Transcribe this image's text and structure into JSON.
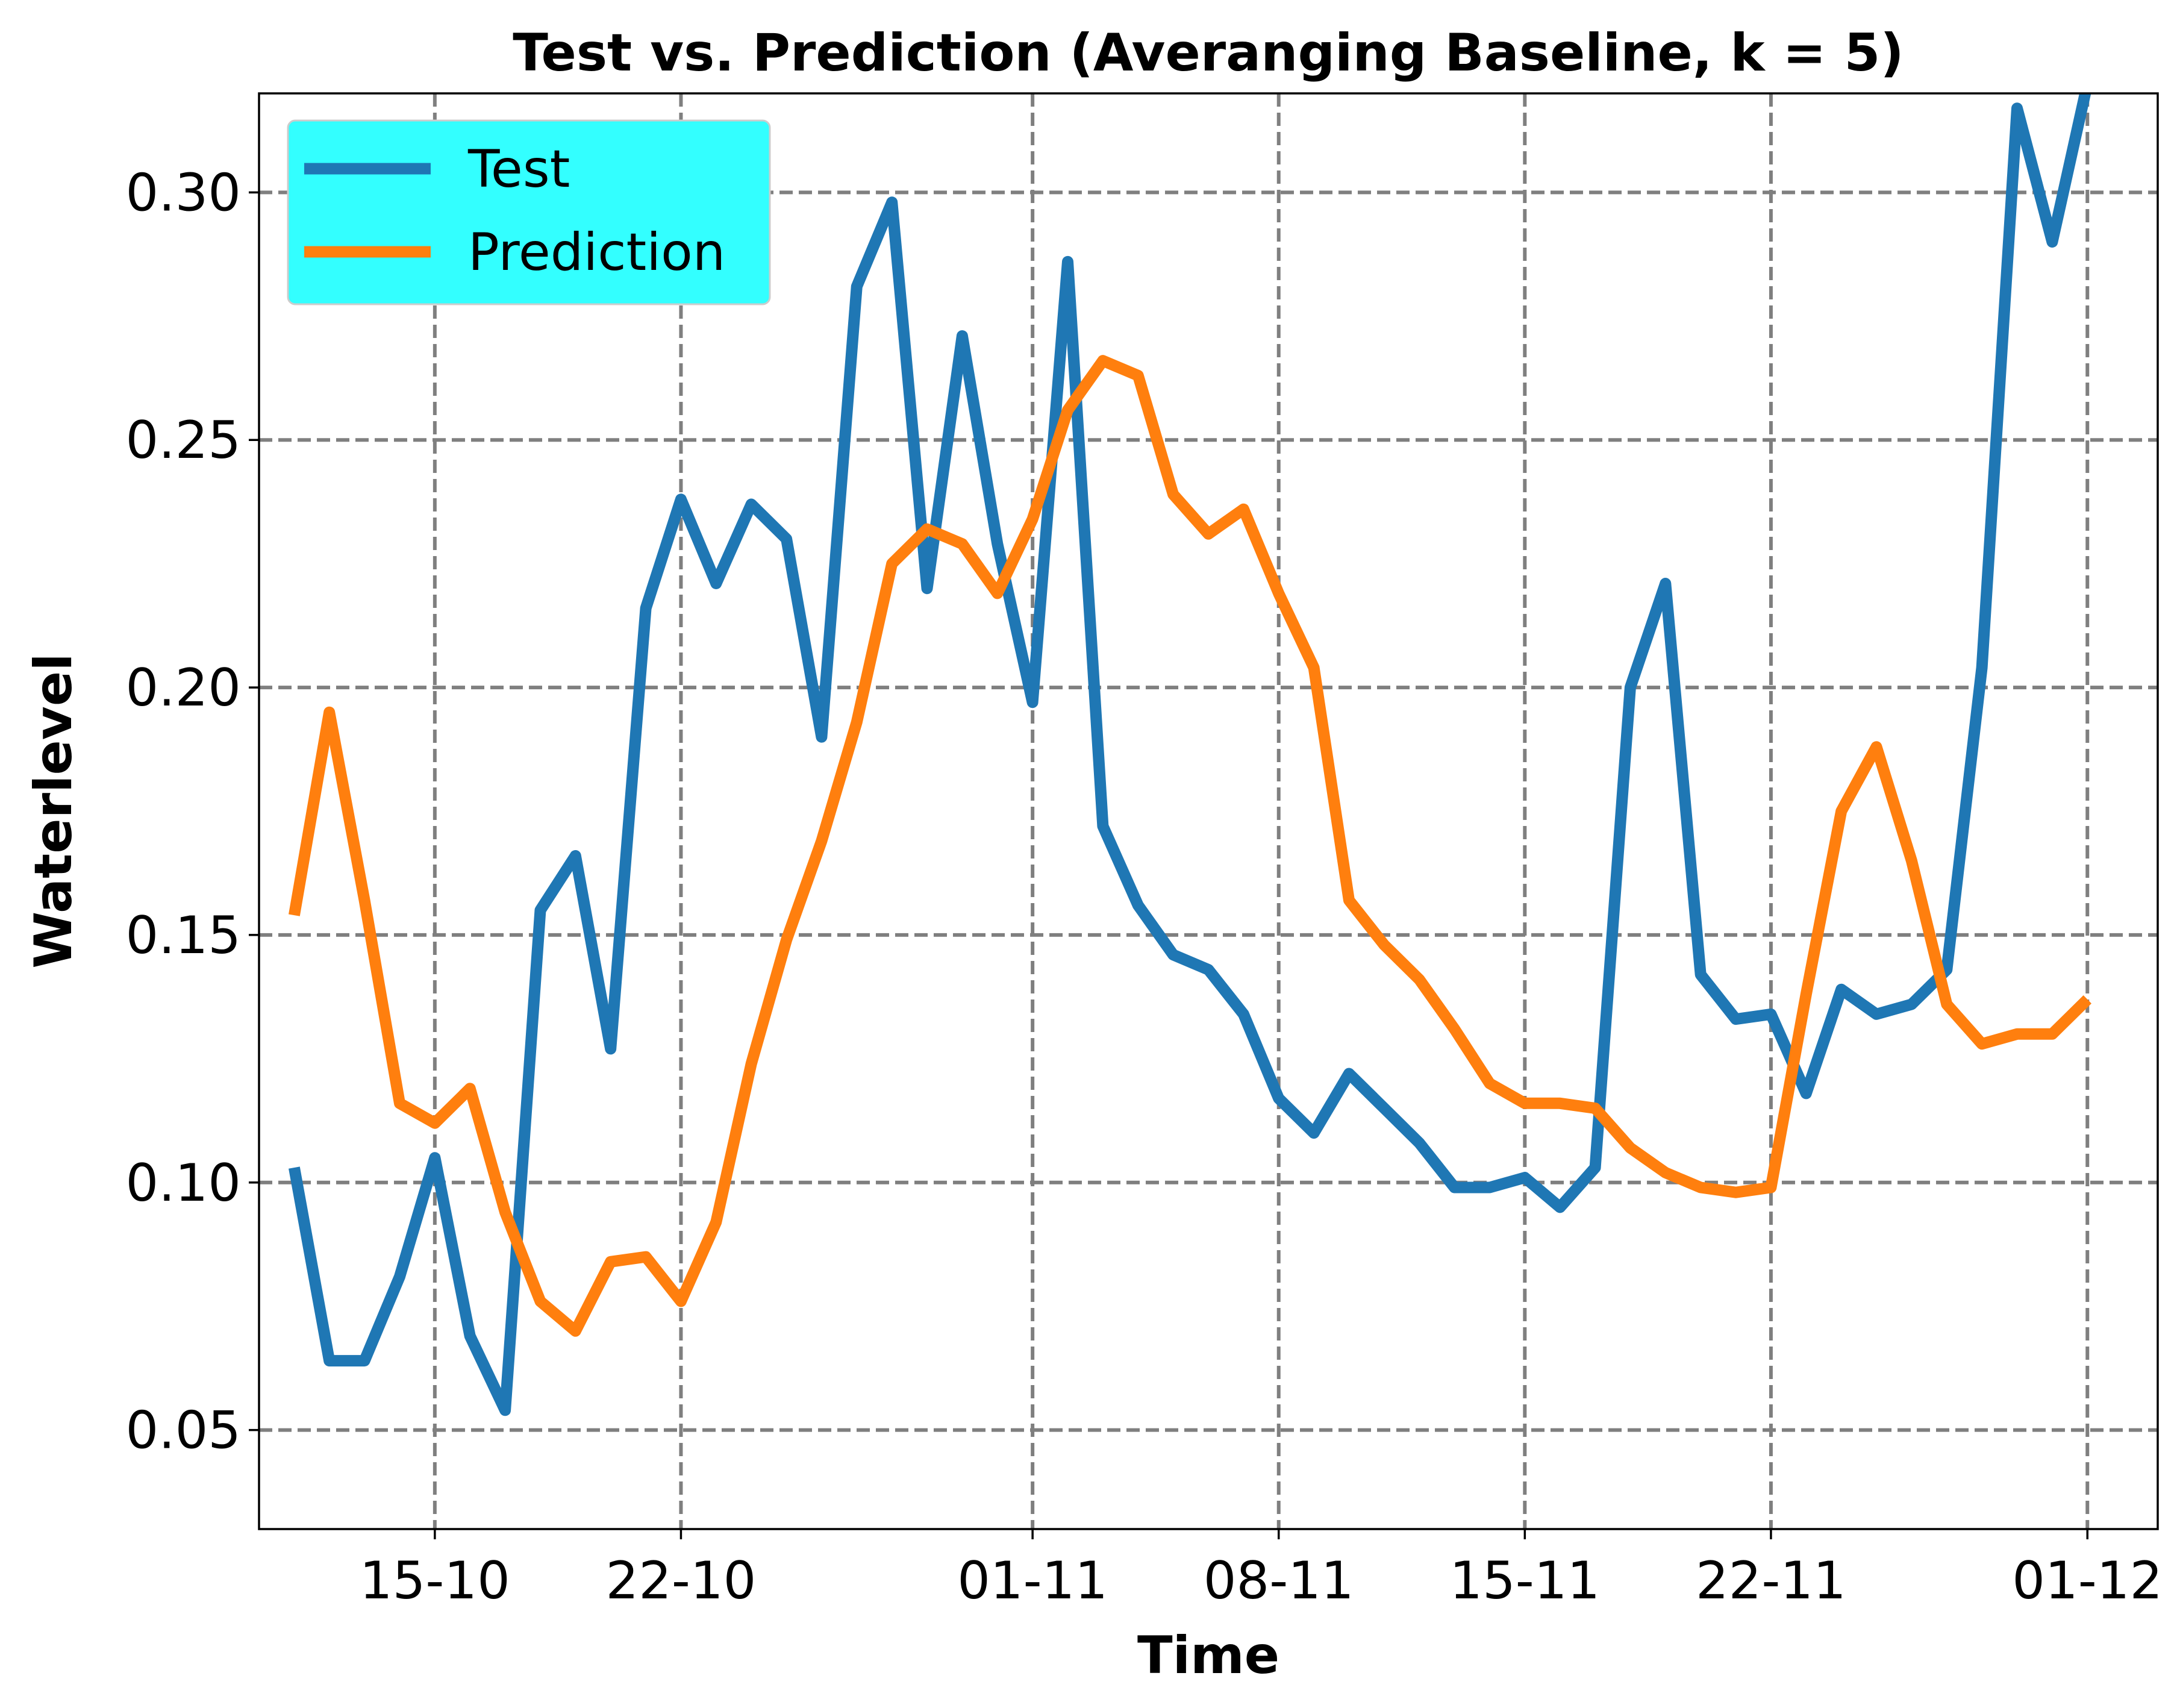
{
  "chart_data": {
    "type": "line",
    "title": "Test vs. Prediction (Averanging Baseline, k = 5)",
    "xlabel": "Time",
    "ylabel": "Waterlevel",
    "x": [
      "2024-10-11",
      "2024-10-12",
      "2024-10-13",
      "2024-10-14",
      "2024-10-15",
      "2024-10-16",
      "2024-10-17",
      "2024-10-18",
      "2024-10-19",
      "2024-10-20",
      "2024-10-21",
      "2024-10-22",
      "2024-10-23",
      "2024-10-24",
      "2024-10-25",
      "2024-10-26",
      "2024-10-27",
      "2024-10-28",
      "2024-10-29",
      "2024-10-30",
      "2024-10-31",
      "2024-11-01",
      "2024-11-02",
      "2024-11-03",
      "2024-11-04",
      "2024-11-05",
      "2024-11-06",
      "2024-11-07",
      "2024-11-08",
      "2024-11-09",
      "2024-11-10",
      "2024-11-11",
      "2024-11-12",
      "2024-11-13",
      "2024-11-14",
      "2024-11-15",
      "2024-11-16",
      "2024-11-17",
      "2024-11-18",
      "2024-11-19",
      "2024-11-20",
      "2024-11-21",
      "2024-11-22",
      "2024-11-23",
      "2024-11-24",
      "2024-11-25",
      "2024-11-26",
      "2024-11-27",
      "2024-11-28",
      "2024-11-29",
      "2024-11-30",
      "2024-12-01"
    ],
    "x_ticks": [
      "15-10",
      "22-10",
      "01-11",
      "08-11",
      "15-11",
      "22-11",
      "01-12"
    ],
    "x_tick_dates": [
      "2024-10-15",
      "2024-10-22",
      "2024-11-01",
      "2024-11-08",
      "2024-11-15",
      "2024-11-22",
      "2024-12-01"
    ],
    "xlim": [
      "2024-10-10",
      "2024-12-03"
    ],
    "ylim": [
      0.03,
      0.32
    ],
    "y_ticks": [
      "0.05",
      "0.10",
      "0.15",
      "0.20",
      "0.25",
      "0.30"
    ],
    "grid": true,
    "legend": "top-left",
    "series": [
      {
        "name": "Test",
        "color": "#1f77b4",
        "values": [
          0.103,
          0.064,
          0.064,
          0.081,
          0.105,
          0.069,
          0.054,
          0.155,
          0.166,
          0.127,
          0.216,
          0.238,
          0.221,
          0.237,
          0.23,
          0.19,
          0.281,
          0.298,
          0.22,
          0.271,
          0.229,
          0.197,
          0.286,
          0.172,
          0.156,
          0.146,
          0.143,
          0.134,
          0.117,
          0.11,
          0.122,
          0.115,
          0.108,
          0.099,
          0.099,
          0.101,
          0.095,
          0.103,
          0.2,
          0.221,
          0.142,
          0.133,
          0.134,
          0.118,
          0.139,
          0.134,
          0.136,
          0.143,
          0.204,
          0.317,
          0.29,
          0.322
        ]
      },
      {
        "name": "Prediction",
        "color": "#ff7f0e",
        "values": [
          0.154,
          0.195,
          0.157,
          0.116,
          0.112,
          0.119,
          0.094,
          0.076,
          0.07,
          0.084,
          0.085,
          0.076,
          0.092,
          0.124,
          0.149,
          0.169,
          0.193,
          0.225,
          0.232,
          0.229,
          0.219,
          0.234,
          0.256,
          0.266,
          0.263,
          0.239,
          0.231,
          0.236,
          0.219,
          0.204,
          0.157,
          0.148,
          0.141,
          0.131,
          0.12,
          0.116,
          0.116,
          0.115,
          0.107,
          0.102,
          0.099,
          0.098,
          0.099,
          0.138,
          0.175,
          0.188,
          0.165,
          0.136,
          0.128,
          0.13,
          0.13,
          0.137
        ]
      }
    ]
  },
  "legend_style": {
    "background": "#33ffff"
  }
}
